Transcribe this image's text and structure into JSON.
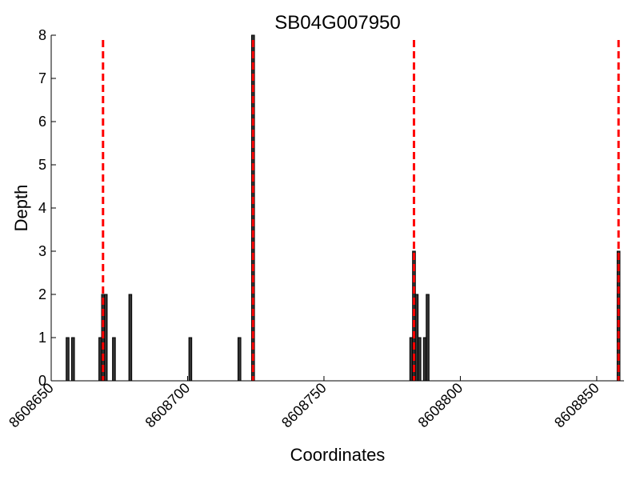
{
  "chart_data": {
    "type": "bar",
    "title": "SB04G007950",
    "xlabel": "Coordinates",
    "ylabel": "Depth",
    "xlim": [
      8608650,
      8608860
    ],
    "ylim": [
      0,
      8
    ],
    "xticks": [
      8608650,
      8608700,
      8608750,
      8608800,
      8608850
    ],
    "yticks": [
      0,
      1,
      2,
      3,
      4,
      5,
      6,
      7,
      8
    ],
    "grid": false,
    "bar_color": "#333333",
    "bar_edge_color": "#000000",
    "marker_color": "#ff0000",
    "series": [
      {
        "x": [
          8608656,
          8608658,
          8608668,
          8608669,
          8608670,
          8608673,
          8608679,
          8608701,
          8608719,
          8608724,
          8608782,
          8608783,
          8608784,
          8608785,
          8608787,
          8608788,
          8608858
        ],
        "values": [
          1,
          1,
          1,
          2,
          2,
          1,
          2,
          1,
          1,
          8,
          1,
          3,
          2,
          1,
          1,
          2,
          3
        ]
      }
    ],
    "vlines": [
      8608669,
      8608724,
      8608783,
      8608858
    ]
  }
}
